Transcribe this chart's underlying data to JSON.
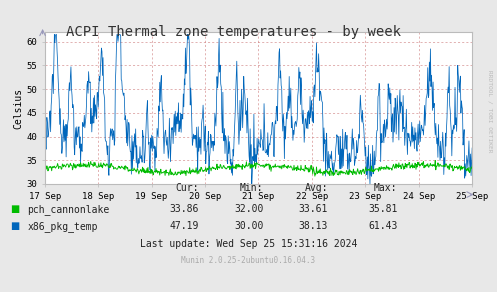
{
  "title": "ACPI Thermal zone temperatures - by week",
  "ylabel": "Celsius",
  "bg_color": "#e8e8e8",
  "plot_bg_color": "#ffffff",
  "grid_color": "#dd8888",
  "ylim": [
    30,
    62
  ],
  "yticks": [
    30,
    35,
    40,
    45,
    50,
    55,
    60
  ],
  "x_labels": [
    "17 Sep",
    "18 Sep",
    "19 Sep",
    "20 Sep",
    "21 Sep",
    "22 Sep",
    "23 Sep",
    "24 Sep",
    "25 Sep"
  ],
  "pch_color": "#00bb00",
  "x86_color": "#0066bb",
  "legend_items": [
    {
      "label": "pch_cannonlake",
      "color": "#00bb00"
    },
    {
      "label": "x86_pkg_temp",
      "color": "#0066bb"
    }
  ],
  "stats": {
    "pch_cannonlake": {
      "cur": "33.86",
      "min": "32.00",
      "avg": "33.61",
      "max": "35.81"
    },
    "x86_pkg_temp": {
      "cur": "47.19",
      "min": "30.00",
      "avg": "38.13",
      "max": "61.43"
    }
  },
  "last_update": "Last update: Wed Sep 25 15:31:16 2024",
  "rrdtool_text": "RRDTOOL / TOBI OETIKER",
  "munin_text": "Munin 2.0.25-2ubuntu0.16.04.3",
  "title_fontsize": 10,
  "axis_fontsize": 6.5,
  "label_fontsize": 7,
  "stats_fontsize": 7
}
